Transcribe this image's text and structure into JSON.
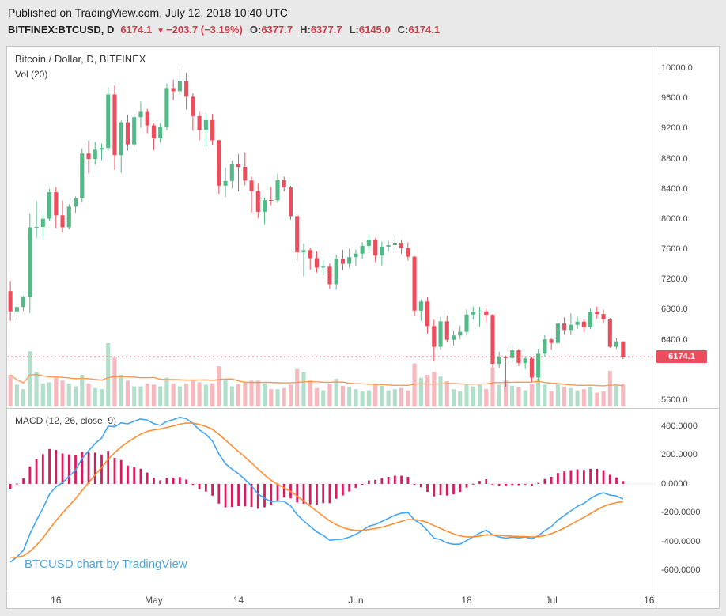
{
  "header": {
    "published_line": "Published on TradingView.com, July 12, 2018 10:40 UTC",
    "symbol": "BITFINEX:BTCUSD, D",
    "last_price": "6174.1",
    "direction_icon": "▼",
    "change": "−203.7 (−3.19%)",
    "ohlc": [
      {
        "label": "O:",
        "value": "6377.7"
      },
      {
        "label": "H:",
        "value": "6377.7"
      },
      {
        "label": "L:",
        "value": "6145.0"
      },
      {
        "label": "C:",
        "value": "6174.1"
      }
    ]
  },
  "main_pane": {
    "legend_title": "Bitcoin / Dollar, D, BITFINEX",
    "legend_vol": "Vol (20)"
  },
  "macd_pane": {
    "legend": "MACD (12, 26, close, 9)",
    "watermark": "BTCUSD chart by TradingView"
  },
  "chart_data": {
    "type": "candlestick",
    "title": "Bitcoin / Dollar, D, BITFINEX",
    "symbol": "BITFINEX:BTCUSD",
    "interval": "D",
    "layout": {
      "x_slots": 99.5,
      "legend_position": "top-left",
      "grid": false
    },
    "x_axis": {
      "ticks": [
        {
          "label": "16",
          "slot": 7
        },
        {
          "label": "May",
          "slot": 22
        },
        {
          "label": "14",
          "slot": 35
        },
        {
          "label": "Jun",
          "slot": 53
        },
        {
          "label": "18",
          "slot": 70
        },
        {
          "label": "Jul",
          "slot": 83
        },
        {
          "label": "16",
          "slot": 98
        }
      ]
    },
    "price_axis": {
      "ticks": [
        "10000.0",
        "9600.0",
        "9200.0",
        "8800.0",
        "8400.0",
        "8000.0",
        "7600.0",
        "7200.0",
        "6800.0",
        "6400.0",
        "5600.0"
      ],
      "ylim": [
        5495,
        10283
      ],
      "current_price": 6174.1,
      "current_price_label": "6174.1"
    },
    "candles": [
      [
        7044,
        7180,
        6650,
        6775
      ],
      [
        6775,
        6871,
        6661,
        6834
      ],
      [
        6834,
        6982,
        6784,
        6968
      ],
      [
        6968,
        8075,
        6755,
        7889
      ],
      [
        7889,
        8240,
        7750,
        7895
      ],
      [
        7895,
        8085,
        7745,
        8003
      ],
      [
        8003,
        8398,
        7970,
        8355
      ],
      [
        8355,
        8420,
        7880,
        8048
      ],
      [
        8048,
        8245,
        7820,
        7890
      ],
      [
        7890,
        8197,
        7860,
        8163
      ],
      [
        8163,
        8298,
        8083,
        8274
      ],
      [
        8274,
        8935,
        8224,
        8866
      ],
      [
        8866,
        9038,
        8605,
        8795
      ],
      [
        8795,
        9020,
        8715,
        8917
      ],
      [
        8917,
        9000,
        8780,
        8940
      ],
      [
        8940,
        9745,
        8900,
        9650
      ],
      [
        9650,
        9765,
        8650,
        8845
      ],
      [
        8845,
        9305,
        8610,
        9281
      ],
      [
        9281,
        9380,
        8905,
        8987
      ],
      [
        8987,
        9390,
        8950,
        9348
      ],
      [
        9348,
        9555,
        9210,
        9419
      ],
      [
        9419,
        9460,
        9135,
        9240
      ],
      [
        9240,
        9265,
        8910,
        9067
      ],
      [
        9067,
        9270,
        9010,
        9219
      ],
      [
        9219,
        9795,
        9175,
        9734
      ],
      [
        9734,
        9845,
        9575,
        9692
      ],
      [
        9692,
        9990,
        9650,
        9826
      ],
      [
        9826,
        9940,
        9450,
        9619
      ],
      [
        9619,
        9665,
        9170,
        9362
      ],
      [
        9362,
        9420,
        9040,
        9180
      ],
      [
        9180,
        9400,
        8960,
        9310
      ],
      [
        9310,
        9390,
        8975,
        9043
      ],
      [
        9043,
        9050,
        8335,
        8441
      ],
      [
        8441,
        8680,
        8290,
        8504
      ],
      [
        8504,
        8775,
        8404,
        8723
      ],
      [
        8723,
        8855,
        8365,
        8690
      ],
      [
        8690,
        8880,
        8445,
        8510
      ],
      [
        8510,
        8560,
        8085,
        8368
      ],
      [
        8368,
        8465,
        8010,
        8094
      ],
      [
        8094,
        8280,
        7930,
        8250
      ],
      [
        8250,
        8420,
        8185,
        8247
      ],
      [
        8247,
        8600,
        8210,
        8513
      ],
      [
        8513,
        8560,
        8365,
        8418
      ],
      [
        8418,
        8440,
        7990,
        8037
      ],
      [
        8037,
        8060,
        7450,
        7557
      ],
      [
        7557,
        7680,
        7240,
        7587
      ],
      [
        7587,
        7620,
        7330,
        7480
      ],
      [
        7480,
        7570,
        7290,
        7355
      ],
      [
        7355,
        7450,
        7255,
        7368
      ],
      [
        7368,
        7410,
        7075,
        7135
      ],
      [
        7135,
        7530,
        7060,
        7472
      ],
      [
        7472,
        7590,
        7320,
        7406
      ],
      [
        7406,
        7610,
        7350,
        7494
      ],
      [
        7494,
        7595,
        7380,
        7541
      ],
      [
        7541,
        7690,
        7470,
        7643
      ],
      [
        7643,
        7780,
        7580,
        7720
      ],
      [
        7720,
        7745,
        7430,
        7515
      ],
      [
        7515,
        7700,
        7385,
        7633
      ],
      [
        7633,
        7710,
        7565,
        7653
      ],
      [
        7653,
        7780,
        7590,
        7684
      ],
      [
        7684,
        7720,
        7540,
        7615
      ],
      [
        7615,
        7690,
        7450,
        7500
      ],
      [
        7500,
        7510,
        6710,
        6786
      ],
      [
        6786,
        6930,
        6650,
        6906
      ],
      [
        6906,
        6960,
        6480,
        6581
      ],
      [
        6581,
        6665,
        6120,
        6306
      ],
      [
        6306,
        6705,
        6270,
        6644
      ],
      [
        6644,
        6720,
        6370,
        6399
      ],
      [
        6399,
        6520,
        6325,
        6456
      ],
      [
        6456,
        6590,
        6405,
        6505
      ],
      [
        6505,
        6800,
        6455,
        6734
      ],
      [
        6734,
        6840,
        6665,
        6769
      ],
      [
        6769,
        6835,
        6575,
        6776
      ],
      [
        6776,
        6815,
        6640,
        6730
      ],
      [
        6730,
        6745,
        6035,
        6081
      ],
      [
        6081,
        6240,
        6025,
        6170
      ],
      [
        6170,
        6190,
        5777,
        6157
      ],
      [
        6157,
        6330,
        6090,
        6260
      ],
      [
        6260,
        6280,
        6050,
        6093
      ],
      [
        6093,
        6180,
        6010,
        6152
      ],
      [
        6152,
        6170,
        5840,
        5898
      ],
      [
        5898,
        6280,
        5850,
        6214
      ],
      [
        6214,
        6460,
        6170,
        6404
      ],
      [
        6404,
        6430,
        6270,
        6357
      ],
      [
        6357,
        6670,
        6310,
        6614
      ],
      [
        6614,
        6700,
        6465,
        6529
      ],
      [
        6529,
        6750,
        6460,
        6597
      ],
      [
        6597,
        6705,
        6545,
        6639
      ],
      [
        6639,
        6680,
        6500,
        6567
      ],
      [
        6567,
        6815,
        6540,
        6771
      ],
      [
        6771,
        6840,
        6680,
        6741
      ],
      [
        6741,
        6800,
        6620,
        6668
      ],
      [
        6668,
        6690,
        6290,
        6306
      ],
      [
        6306,
        6420,
        6280,
        6377.7
      ],
      [
        6377.7,
        6377.7,
        6145.0,
        6174.1
      ]
    ],
    "volume": {
      "ma_period": 20,
      "values": [
        55,
        38,
        30,
        96,
        60,
        40,
        42,
        50,
        45,
        40,
        35,
        55,
        40,
        32,
        30,
        110,
        85,
        55,
        45,
        35,
        35,
        40,
        38,
        35,
        50,
        40,
        35,
        40,
        45,
        42,
        38,
        40,
        70,
        45,
        35,
        40,
        42,
        45,
        45,
        40,
        30,
        30,
        32,
        38,
        65,
        60,
        45,
        32,
        28,
        40,
        48,
        36,
        34,
        30,
        26,
        28,
        38,
        36,
        28,
        30,
        32,
        28,
        75,
        50,
        55,
        60,
        52,
        44,
        30,
        26,
        40,
        35,
        38,
        30,
        68,
        38,
        45,
        36,
        34,
        28,
        40,
        48,
        38,
        26,
        40,
        34,
        32,
        28,
        30,
        34,
        24,
        26,
        62,
        36,
        40
      ]
    },
    "macd": {
      "fast": 12,
      "slow": 26,
      "source": "close",
      "signal": 9,
      "seeds": {
        "ema_fast": 6900,
        "ema_slow": 7475,
        "signal": -500
      },
      "axis_ticks": [
        "400.0000",
        "200.0000",
        "0.0000",
        "-200.0000",
        "-400.0000",
        "-600.0000"
      ],
      "ylim": [
        -740,
        520
      ]
    },
    "colors": {
      "up": "#53b987",
      "down": "#eb4d5c",
      "vol_up": "rgba(83,185,135,0.45)",
      "vol_down": "rgba(235,77,92,0.40)",
      "vol_ma": "#ff9850",
      "macd_line": "#42a5f5",
      "signal_line": "#ff8d33",
      "histogram": "#d81b60",
      "price_line": "#eb4d5c",
      "price_badge_bg": "#eb4d5c",
      "header_value_red": "#d13a4a",
      "watermark_blue": "#55a8dc"
    }
  }
}
